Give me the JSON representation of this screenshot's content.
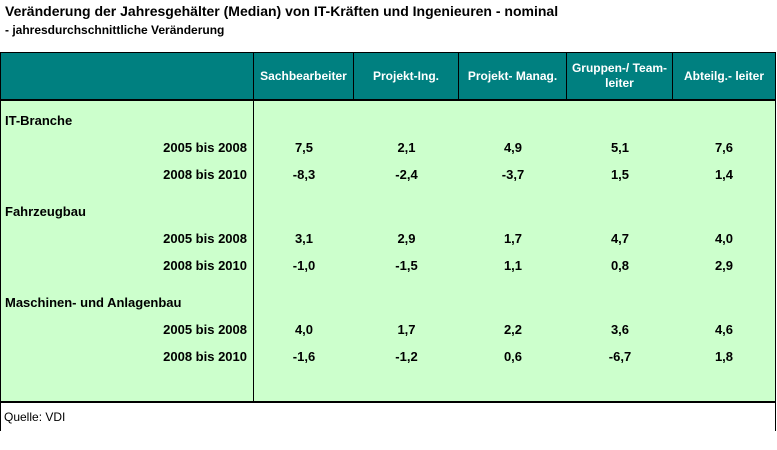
{
  "title": "Veränderung der Jahresgehälter (Median) von IT-Kräften und Ingenieuren - nominal",
  "subtitle": "- jahresdurchschnittliche Veränderung",
  "source": "Quelle: VDI",
  "colors": {
    "header_bg": "#008080",
    "header_text": "#FFFFFF",
    "body_bg": "#CCFFCC",
    "border": "#000000"
  },
  "table": {
    "columns": [
      "Sachbearbeiter",
      "Projekt-Ing.",
      "Projekt- Manag.",
      "Gruppen-/ Team-\nleiter",
      "Abteilg.- leiter"
    ],
    "sections": [
      {
        "label": "IT-Branche",
        "rows": [
          {
            "period": "2005 bis 2008",
            "values": [
              "7,5",
              "2,1",
              "4,9",
              "5,1",
              "7,6"
            ]
          },
          {
            "period": "2008 bis 2010",
            "values": [
              "-8,3",
              "-2,4",
              "-3,7",
              "1,5",
              "1,4"
            ]
          }
        ]
      },
      {
        "label": "Fahrzeugbau",
        "rows": [
          {
            "period": "2005 bis 2008",
            "values": [
              "3,1",
              "2,9",
              "1,7",
              "4,7",
              "4,0"
            ]
          },
          {
            "period": "2008 bis 2010",
            "values": [
              "-1,0",
              "-1,5",
              "1,1",
              "0,8",
              "2,9"
            ]
          }
        ]
      },
      {
        "label": "Maschinen- und Anlagenbau",
        "rows": [
          {
            "period": "2005 bis 2008",
            "values": [
              "4,0",
              "1,7",
              "2,2",
              "3,6",
              "4,6"
            ]
          },
          {
            "period": "2008 bis 2010",
            "values": [
              "-1,6",
              "-1,2",
              "0,6",
              "-6,7",
              "1,8"
            ]
          }
        ]
      }
    ]
  },
  "chart_data": {
    "type": "table",
    "title": "Veränderung der Jahresgehälter (Median) von IT-Kräften und Ingenieuren - nominal",
    "subtitle": "- jahresdurchschnittliche Veränderung",
    "columns": [
      "Sachbearbeiter",
      "Projekt-Ing.",
      "Projekt- Manag.",
      "Gruppen-/ Team-leiter",
      "Abteilg.- leiter"
    ],
    "rows": [
      {
        "group": "IT-Branche",
        "period": "2005 bis 2008",
        "values": [
          7.5,
          2.1,
          4.9,
          5.1,
          7.6
        ]
      },
      {
        "group": "IT-Branche",
        "period": "2008 bis 2010",
        "values": [
          -8.3,
          -2.4,
          -3.7,
          1.5,
          1.4
        ]
      },
      {
        "group": "Fahrzeugbau",
        "period": "2005 bis 2008",
        "values": [
          3.1,
          2.9,
          1.7,
          4.7,
          4.0
        ]
      },
      {
        "group": "Fahrzeugbau",
        "period": "2008 bis 2010",
        "values": [
          -1.0,
          -1.5,
          1.1,
          0.8,
          2.9
        ]
      },
      {
        "group": "Maschinen- und Anlagenbau",
        "period": "2005 bis 2008",
        "values": [
          4.0,
          1.7,
          2.2,
          3.6,
          4.6
        ]
      },
      {
        "group": "Maschinen- und Anlagenbau",
        "period": "2008 bis 2010",
        "values": [
          -1.6,
          -1.2,
          0.6,
          -6.7,
          1.8
        ]
      }
    ],
    "source": "Quelle: VDI"
  }
}
